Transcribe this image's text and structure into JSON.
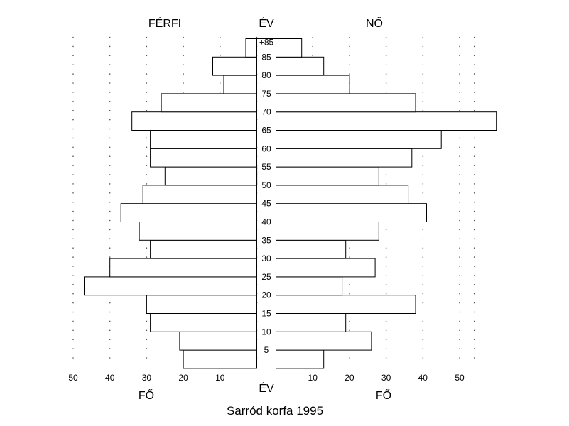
{
  "chart_data": {
    "type": "bar",
    "orientation": "population-pyramid",
    "title": "Sarród korfa 1995",
    "left_header": "FÉRFI",
    "center_header": "ÉV",
    "right_header": "NŐ",
    "left_xlabel": "FŐ",
    "center_xlabel": "ÉV",
    "right_xlabel": "FŐ",
    "left_ticks": [
      "50",
      "40",
      "30",
      "20",
      "10"
    ],
    "right_ticks": [
      "10",
      "20",
      "30",
      "40",
      "50"
    ],
    "age_labels": [
      "5",
      "10",
      "15",
      "20",
      "25",
      "30",
      "35",
      "40",
      "45",
      "50",
      "55",
      "60",
      "65",
      "70",
      "75",
      "80",
      "85",
      "+85"
    ],
    "xlim": [
      0,
      50
    ],
    "grid": "dotted",
    "categories": [
      "0-4",
      "5-9",
      "10-14",
      "15-19",
      "20-24",
      "25-29",
      "30-34",
      "35-39",
      "40-44",
      "45-49",
      "50-54",
      "55-59",
      "60-64",
      "65-69",
      "70-74",
      "75-79",
      "80-84",
      "85+"
    ],
    "series": [
      {
        "name": "FÉRFI",
        "values": [
          20,
          21,
          29,
          30,
          47,
          40,
          29,
          32,
          37,
          31,
          25,
          29,
          29,
          34,
          26,
          9,
          12,
          3
        ]
      },
      {
        "name": "NŐ",
        "values": [
          13,
          26,
          19,
          38,
          18,
          27,
          19,
          28,
          41,
          36,
          28,
          37,
          45,
          60,
          38,
          20,
          13,
          7
        ]
      }
    ]
  }
}
